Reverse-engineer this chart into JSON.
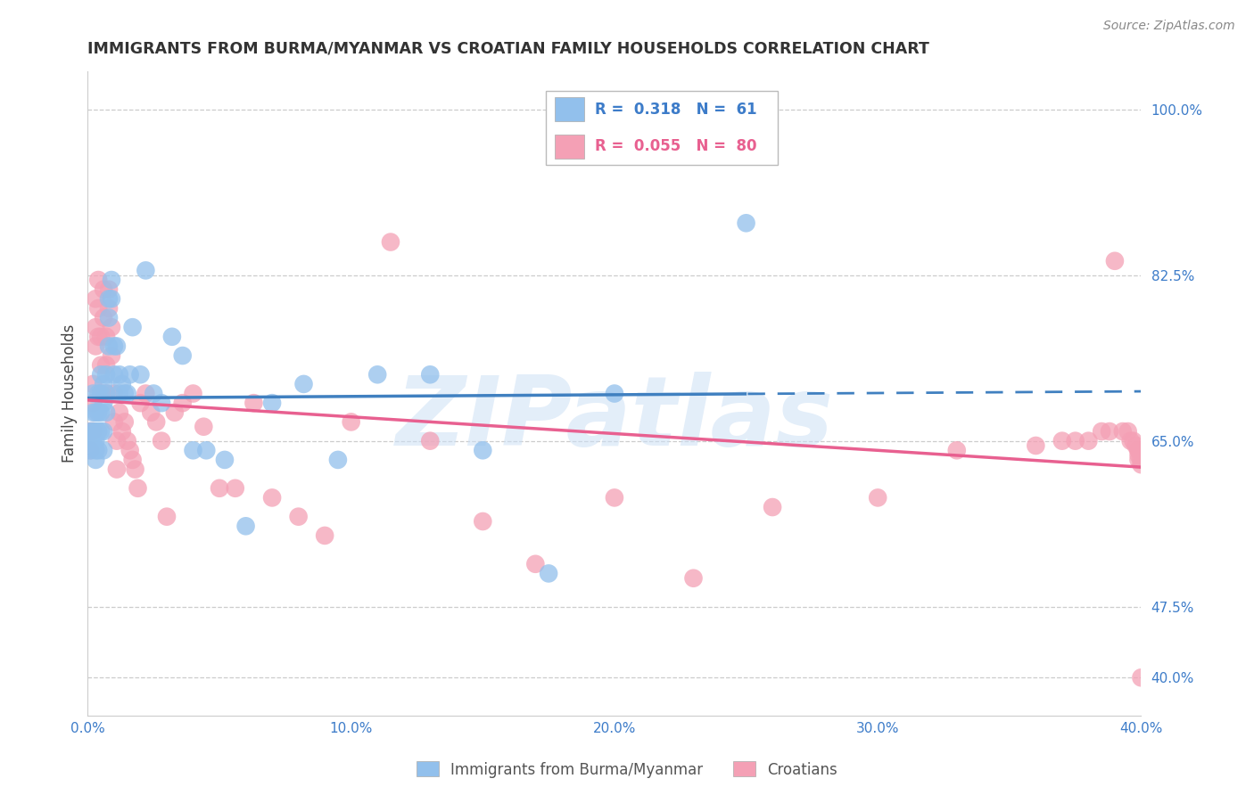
{
  "title": "IMMIGRANTS FROM BURMA/MYANMAR VS CROATIAN FAMILY HOUSEHOLDS CORRELATION CHART",
  "source": "Source: ZipAtlas.com",
  "ylabel": "Family Households",
  "y_tick_labels_right": [
    "100.0%",
    "82.5%",
    "65.0%",
    "47.5%",
    "40.0%"
  ],
  "y_tick_values": [
    1.0,
    0.825,
    0.65,
    0.475,
    0.4
  ],
  "x_min": 0.0,
  "x_max": 0.4,
  "y_min": 0.36,
  "y_max": 1.04,
  "legend_r1": "R =  0.318   N =  61",
  "legend_r2": "R =  0.055   N =  80",
  "legend_label1": "Immigrants from Burma/Myanmar",
  "legend_label2": "Croatians",
  "blue_color": "#92C0EC",
  "pink_color": "#F4A0B5",
  "blue_line_color": "#4080C0",
  "pink_line_color": "#E86090",
  "text_color": "#3D7CC9",
  "watermark": "ZIPatlas",
  "blue_x": [
    0.001,
    0.001,
    0.001,
    0.002,
    0.002,
    0.002,
    0.002,
    0.003,
    0.003,
    0.003,
    0.003,
    0.003,
    0.004,
    0.004,
    0.004,
    0.004,
    0.005,
    0.005,
    0.005,
    0.005,
    0.006,
    0.006,
    0.006,
    0.006,
    0.007,
    0.007,
    0.007,
    0.008,
    0.008,
    0.008,
    0.009,
    0.009,
    0.01,
    0.01,
    0.011,
    0.012,
    0.012,
    0.013,
    0.014,
    0.015,
    0.016,
    0.017,
    0.02,
    0.022,
    0.025,
    0.028,
    0.032,
    0.036,
    0.04,
    0.045,
    0.052,
    0.06,
    0.07,
    0.082,
    0.095,
    0.11,
    0.13,
    0.15,
    0.175,
    0.2,
    0.25
  ],
  "blue_y": [
    0.66,
    0.65,
    0.64,
    0.7,
    0.68,
    0.66,
    0.65,
    0.68,
    0.66,
    0.65,
    0.64,
    0.63,
    0.7,
    0.68,
    0.66,
    0.64,
    0.72,
    0.7,
    0.68,
    0.66,
    0.71,
    0.69,
    0.66,
    0.64,
    0.72,
    0.7,
    0.68,
    0.8,
    0.78,
    0.75,
    0.82,
    0.8,
    0.75,
    0.72,
    0.75,
    0.72,
    0.7,
    0.71,
    0.7,
    0.7,
    0.72,
    0.77,
    0.72,
    0.83,
    0.7,
    0.69,
    0.76,
    0.74,
    0.64,
    0.64,
    0.63,
    0.56,
    0.69,
    0.71,
    0.63,
    0.72,
    0.72,
    0.64,
    0.51,
    0.7,
    0.88
  ],
  "pink_x": [
    0.001,
    0.001,
    0.002,
    0.002,
    0.002,
    0.003,
    0.003,
    0.003,
    0.004,
    0.004,
    0.004,
    0.005,
    0.005,
    0.005,
    0.006,
    0.006,
    0.007,
    0.007,
    0.007,
    0.008,
    0.008,
    0.009,
    0.009,
    0.01,
    0.01,
    0.011,
    0.011,
    0.012,
    0.013,
    0.014,
    0.015,
    0.016,
    0.017,
    0.018,
    0.019,
    0.02,
    0.022,
    0.024,
    0.026,
    0.028,
    0.03,
    0.033,
    0.036,
    0.04,
    0.044,
    0.05,
    0.056,
    0.063,
    0.07,
    0.08,
    0.09,
    0.1,
    0.115,
    0.13,
    0.15,
    0.17,
    0.2,
    0.23,
    0.26,
    0.3,
    0.33,
    0.36,
    0.37,
    0.375,
    0.38,
    0.385,
    0.388,
    0.39,
    0.393,
    0.395,
    0.396,
    0.397,
    0.398,
    0.399,
    0.399,
    0.399,
    0.399,
    0.4,
    0.4,
    0.4
  ],
  "pink_y": [
    0.66,
    0.64,
    0.71,
    0.69,
    0.66,
    0.8,
    0.77,
    0.75,
    0.82,
    0.79,
    0.76,
    0.76,
    0.73,
    0.7,
    0.81,
    0.78,
    0.76,
    0.73,
    0.7,
    0.81,
    0.79,
    0.77,
    0.74,
    0.7,
    0.67,
    0.65,
    0.62,
    0.68,
    0.66,
    0.67,
    0.65,
    0.64,
    0.63,
    0.62,
    0.6,
    0.69,
    0.7,
    0.68,
    0.67,
    0.65,
    0.57,
    0.68,
    0.69,
    0.7,
    0.665,
    0.6,
    0.6,
    0.69,
    0.59,
    0.57,
    0.55,
    0.67,
    0.86,
    0.65,
    0.565,
    0.52,
    0.59,
    0.505,
    0.58,
    0.59,
    0.64,
    0.645,
    0.65,
    0.65,
    0.65,
    0.66,
    0.66,
    0.84,
    0.66,
    0.66,
    0.65,
    0.65,
    0.645,
    0.64,
    0.64,
    0.635,
    0.63,
    0.63,
    0.625,
    0.4
  ]
}
